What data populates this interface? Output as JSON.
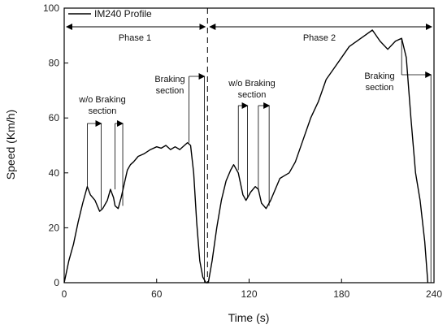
{
  "chart_data": {
    "type": "line",
    "title": "",
    "xlabel": "Time (s)",
    "ylabel": "Speed (Km/h)",
    "xlim": [
      0,
      240
    ],
    "ylim": [
      0,
      100
    ],
    "xticks": [
      0,
      60,
      120,
      180,
      240
    ],
    "yticks": [
      0,
      20,
      40,
      60,
      80,
      100
    ],
    "grid": false,
    "legend": {
      "position": "top-left",
      "entries": [
        "IM240 Profile"
      ]
    },
    "series": [
      {
        "name": "IM240 Profile",
        "color": "#000000",
        "x": [
          0,
          3,
          6,
          9,
          12,
          15,
          17,
          20,
          23,
          25,
          28,
          30,
          32,
          33,
          35,
          37,
          39,
          41,
          43,
          45,
          48,
          52,
          56,
          60,
          63,
          66,
          69,
          72,
          75,
          78,
          80,
          82,
          84,
          86,
          88,
          90,
          92,
          93.5,
          96,
          99,
          102,
          105,
          108,
          110,
          113,
          116,
          118,
          121,
          124,
          126,
          128,
          131,
          134,
          137,
          140,
          143,
          146,
          150,
          155,
          160,
          165,
          170,
          175,
          180,
          185,
          190,
          195,
          200,
          205,
          210,
          215,
          219,
          222,
          225,
          228,
          231,
          234,
          236
        ],
        "y": [
          0,
          8,
          14,
          22,
          29,
          35,
          32,
          30,
          26,
          27,
          30,
          34,
          31,
          28,
          27,
          31,
          36,
          41,
          43,
          44,
          46,
          47,
          48.5,
          49.5,
          49,
          50,
          48.5,
          49.5,
          48.5,
          50,
          51,
          50,
          40,
          22,
          8,
          2,
          0,
          0,
          8,
          20,
          30,
          37,
          41,
          43,
          40,
          32,
          30,
          33,
          35,
          34,
          29,
          27,
          30,
          34,
          38,
          39,
          40,
          44,
          52,
          60,
          66,
          74,
          78,
          82,
          86,
          88,
          90,
          92,
          88,
          85,
          88,
          89,
          82,
          60,
          40,
          30,
          15,
          0
        ]
      }
    ],
    "annotations": {
      "phase1": "Phase 1",
      "phase2": "Phase 2",
      "wo_braking_line1": "w/o Braking",
      "wo_braking_line2": "section",
      "braking_line1": "Braking",
      "braking_line2": "section"
    },
    "phase_boundary_x": 93
  }
}
